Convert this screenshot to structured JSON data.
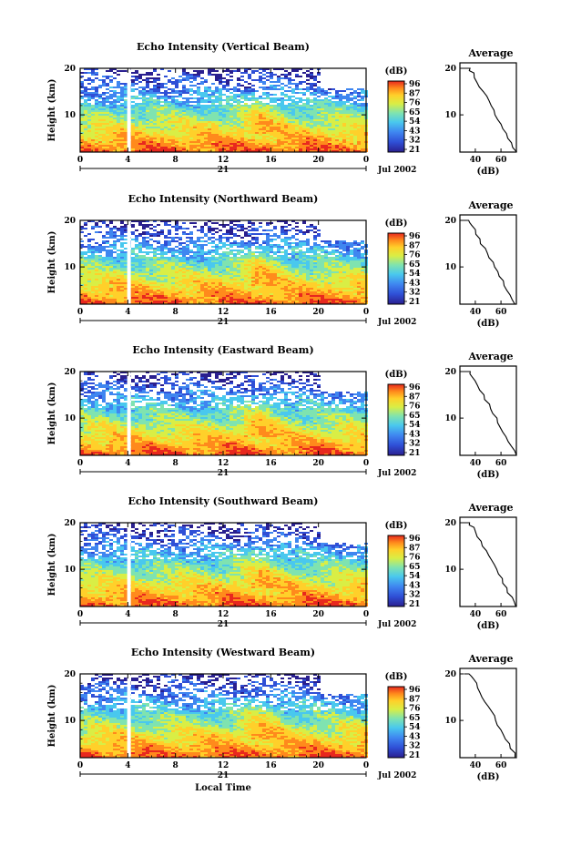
{
  "figure": {
    "xlabel": "Local Time",
    "date_label": "Jul 2002",
    "day_label": "21",
    "colorbar_unit": "(dB)",
    "average_title": "Average",
    "average_xunit": "(dB)"
  },
  "chart_data": [
    {
      "type": "heatmap",
      "title": "Echo Intensity (Vertical Beam)",
      "ylabel": "Height (km)",
      "xlabel": "",
      "xticks": [
        "0",
        "4",
        "8",
        "12",
        "16",
        "20",
        "0"
      ],
      "xlim": [
        0,
        24
      ],
      "yticks": [
        "20",
        "10"
      ],
      "ylim": [
        2,
        20
      ],
      "colorbar_ticks": [
        "96",
        "87",
        "76",
        "65",
        "54",
        "43",
        "32",
        "21"
      ],
      "profile": {
        "title": "Average",
        "xticks": [
          "40",
          "60"
        ],
        "xlim": [
          28,
          72
        ],
        "yticks": [
          "20",
          "10"
        ],
        "ylim": [
          2,
          20
        ],
        "xlabel": "(dB)",
        "x": [
          72,
          70,
          68,
          66,
          64,
          62,
          60,
          58,
          56,
          54,
          52,
          50,
          48,
          46,
          44,
          42,
          40,
          38,
          36,
          35,
          34,
          33,
          32,
          31
        ],
        "y": [
          2,
          3,
          4,
          5,
          6,
          7,
          8,
          9,
          10,
          11,
          12,
          13,
          14,
          15,
          16,
          17,
          18,
          19,
          19.5,
          20,
          20,
          20,
          20,
          20
        ]
      }
    },
    {
      "type": "heatmap",
      "title": "Echo Intensity (Northward Beam)",
      "ylabel": "Height (km)",
      "xlabel": "",
      "xticks": [
        "0",
        "4",
        "8",
        "12",
        "16",
        "20",
        "0"
      ],
      "xlim": [
        0,
        24
      ],
      "yticks": [
        "20",
        "10"
      ],
      "ylim": [
        2,
        20
      ],
      "colorbar_ticks": [
        "96",
        "87",
        "76",
        "65",
        "54",
        "43",
        "32",
        "21"
      ],
      "profile": {
        "title": "Average",
        "xticks": [
          "40",
          "60"
        ],
        "xlim": [
          28,
          72
        ],
        "yticks": [
          "20",
          "10"
        ],
        "ylim": [
          2,
          20
        ],
        "xlabel": "(dB)",
        "x": [
          71,
          69,
          67,
          65,
          63,
          61,
          59,
          57,
          55,
          53,
          51,
          49,
          47,
          45,
          43,
          41,
          39,
          37,
          35,
          34,
          33,
          32,
          31,
          30
        ],
        "y": [
          2,
          3,
          4,
          5,
          6,
          7,
          8,
          9,
          10,
          11,
          12,
          13,
          14,
          15,
          16,
          17,
          18,
          19,
          19.5,
          20,
          20,
          20,
          20,
          20
        ]
      }
    },
    {
      "type": "heatmap",
      "title": "Echo Intensity (Eastward Beam)",
      "ylabel": "Height (km)",
      "xlabel": "",
      "xticks": [
        "0",
        "4",
        "8",
        "12",
        "16",
        "20",
        "0"
      ],
      "xlim": [
        0,
        24
      ],
      "yticks": [
        "20",
        "10"
      ],
      "ylim": [
        2,
        20
      ],
      "colorbar_ticks": [
        "96",
        "87",
        "76",
        "65",
        "54",
        "43",
        "32",
        "21"
      ],
      "profile": {
        "title": "Average",
        "xticks": [
          "40",
          "60"
        ],
        "xlim": [
          28,
          72
        ],
        "yticks": [
          "20",
          "10"
        ],
        "ylim": [
          2,
          20
        ],
        "xlabel": "(dB)",
        "x": [
          71,
          70,
          68,
          66,
          64,
          62,
          60,
          58,
          56,
          54,
          52,
          50,
          48,
          46,
          44,
          42,
          40,
          38,
          36,
          35,
          34,
          33,
          32,
          31
        ],
        "y": [
          2,
          3,
          4,
          5,
          6,
          7,
          8,
          9,
          10,
          11,
          12,
          13,
          14,
          15,
          16,
          17,
          18,
          19,
          19.5,
          20,
          20,
          20,
          20,
          20
        ]
      }
    },
    {
      "type": "heatmap",
      "title": "Echo Intensity (Southward Beam)",
      "ylabel": "Height (km)",
      "xlabel": "",
      "xticks": [
        "0",
        "4",
        "8",
        "12",
        "16",
        "20",
        "0"
      ],
      "xlim": [
        0,
        24
      ],
      "yticks": [
        "20",
        "10"
      ],
      "ylim": [
        2,
        20
      ],
      "colorbar_ticks": [
        "96",
        "87",
        "76",
        "65",
        "54",
        "43",
        "32",
        "21"
      ],
      "profile": {
        "title": "Average",
        "xticks": [
          "40",
          "60"
        ],
        "xlim": [
          28,
          72
        ],
        "yticks": [
          "20",
          "10"
        ],
        "ylim": [
          2,
          20
        ],
        "xlabel": "(dB)",
        "x": [
          72,
          70,
          68,
          66,
          64,
          62,
          60,
          58,
          56,
          54,
          52,
          50,
          48,
          46,
          44,
          42,
          40,
          38,
          36,
          35,
          34,
          33,
          32,
          31
        ],
        "y": [
          2,
          3,
          4,
          5,
          6,
          7,
          8,
          9,
          10,
          11,
          12,
          13,
          14,
          15,
          16,
          17,
          18,
          19,
          19.5,
          20,
          20,
          20,
          20,
          20
        ]
      }
    },
    {
      "type": "heatmap",
      "title": "Echo Intensity (Westward Beam)",
      "ylabel": "Height (km)",
      "xlabel": "Local Time",
      "xticks": [
        "0",
        "4",
        "8",
        "12",
        "16",
        "20",
        "0"
      ],
      "xlim": [
        0,
        24
      ],
      "yticks": [
        "20",
        "10"
      ],
      "ylim": [
        2,
        20
      ],
      "colorbar_ticks": [
        "96",
        "87",
        "76",
        "65",
        "54",
        "43",
        "32",
        "21"
      ],
      "profile": {
        "title": "Average",
        "xticks": [
          "40",
          "60"
        ],
        "xlim": [
          28,
          72
        ],
        "yticks": [
          "20",
          "10"
        ],
        "ylim": [
          2,
          20
        ],
        "xlabel": "(dB)",
        "x": [
          71,
          70,
          68,
          66,
          64,
          62,
          60,
          58,
          56,
          54,
          52,
          50,
          48,
          46,
          44,
          42,
          40,
          38,
          36,
          35,
          34,
          33,
          32,
          31
        ],
        "y": [
          2,
          3,
          4,
          5,
          6,
          7,
          8,
          9,
          10,
          11,
          12,
          13,
          14,
          15,
          16,
          17,
          18,
          19,
          19.5,
          20,
          20,
          20,
          20,
          20
        ]
      }
    }
  ],
  "colors": {
    "colormap": [
      "#2a1f8f",
      "#2f4fd6",
      "#3f86f0",
      "#49c8ee",
      "#7fe3b0",
      "#d9ee45",
      "#ffd02a",
      "#ff8a1c",
      "#e8281e"
    ],
    "gap": "#ffffff"
  }
}
